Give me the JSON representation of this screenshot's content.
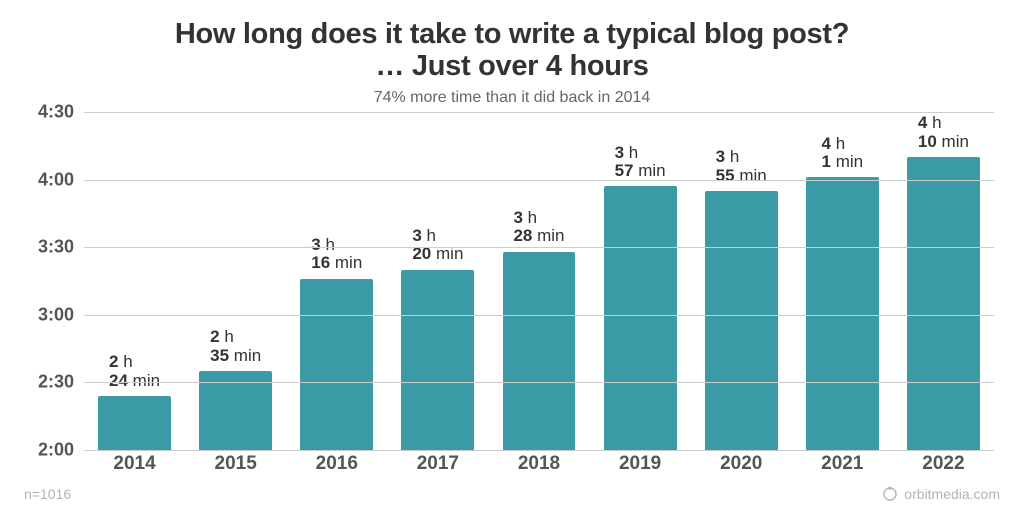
{
  "chart": {
    "type": "bar",
    "title_line1": "How long does it take to write a typical blog post?",
    "title_line2": "… Just over 4 hours",
    "title_fontsize": 29,
    "title_color": "#333333",
    "subtitle": "74% more time than it did back in 2014",
    "subtitle_fontsize": 16,
    "subtitle_color": "#666666",
    "background_color": "#ffffff",
    "grid_color": "#cccccc",
    "bar_color": "#3a9ba6",
    "bar_width": 0.72,
    "font_family": "Helvetica Neue, Helvetica, Arial, sans-serif",
    "y": {
      "min_minutes": 120,
      "max_minutes": 270,
      "ticks_minutes": [
        120,
        150,
        180,
        210,
        240,
        270
      ],
      "tick_labels": [
        "2:00",
        "2:30",
        "3:00",
        "3:30",
        "4:00",
        "4:30"
      ],
      "tick_fontsize": 18,
      "tick_color": "#555555"
    },
    "x": {
      "label_fontsize": 19,
      "label_color": "#555555"
    },
    "series": [
      {
        "year": "2014",
        "minutes": 144,
        "hours_label": "2",
        "min_label": "24"
      },
      {
        "year": "2015",
        "minutes": 155,
        "hours_label": "2",
        "min_label": "35"
      },
      {
        "year": "2016",
        "minutes": 196,
        "hours_label": "3",
        "min_label": "16"
      },
      {
        "year": "2017",
        "minutes": 200,
        "hours_label": "3",
        "min_label": "20"
      },
      {
        "year": "2018",
        "minutes": 208,
        "hours_label": "3",
        "min_label": "28"
      },
      {
        "year": "2019",
        "minutes": 237,
        "hours_label": "3",
        "min_label": "57"
      },
      {
        "year": "2020",
        "minutes": 235,
        "hours_label": "3",
        "min_label": "55"
      },
      {
        "year": "2021",
        "minutes": 241,
        "hours_label": "4",
        "min_label": "1"
      },
      {
        "year": "2022",
        "minutes": 250,
        "hours_label": "4",
        "min_label": "10"
      }
    ],
    "units": {
      "h": "h",
      "min": "min"
    },
    "footer": {
      "sample": "n=1016",
      "credit": "orbitmedia.com",
      "color": "#b4b4b4",
      "fontsize": 14
    }
  }
}
